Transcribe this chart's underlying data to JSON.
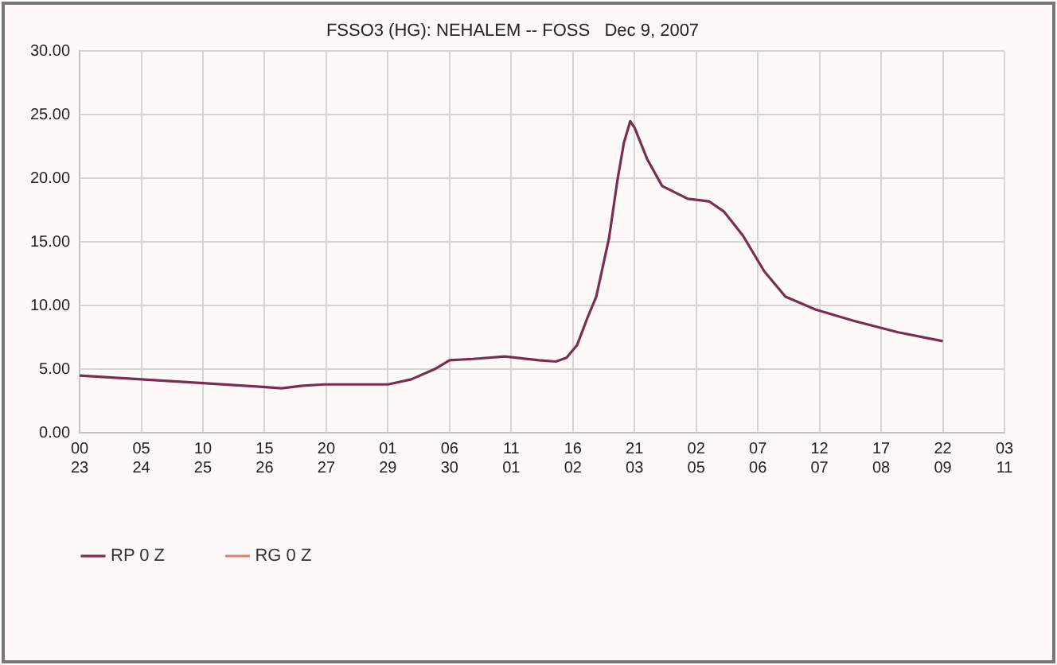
{
  "chart_data": {
    "type": "line",
    "title": "FSSO3 (HG): NEHALEM -- FOSS   Dec 9, 2007",
    "x": [
      "2007-11-23T00:00",
      "2007-11-24T05:00",
      "2007-11-25T10:00",
      "2007-11-26T14:00",
      "2007-11-26T23:00",
      "2007-11-27T09:00",
      "2007-11-27T19:00",
      "2007-11-29T01:00",
      "2007-11-29T12:00",
      "2007-11-29T23:00",
      "2007-11-30T06:00",
      "2007-11-30T17:00",
      "2007-12-01T08:00",
      "2007-12-02T00:00",
      "2007-12-02T08:00",
      "2007-12-02T13:00",
      "2007-12-02T18:00",
      "2007-12-02T23:00",
      "2007-12-03T03:00",
      "2007-12-03T09:00",
      "2007-12-03T13:00",
      "2007-12-03T16:00",
      "2007-12-03T19:00",
      "2007-12-03T21:00",
      "2007-12-04T03:00",
      "2007-12-04T10:00",
      "2007-12-04T22:00",
      "2007-12-05T08:00",
      "2007-12-05T15:00",
      "2007-12-06T00:00",
      "2007-12-06T10:00",
      "2007-12-06T20:00",
      "2007-12-07T10:00",
      "2007-12-08T04:00",
      "2007-12-09T01:00",
      "2007-12-09T22:00"
    ],
    "series": [
      {
        "name": "RP 0 Z",
        "color": "#7b2d4f",
        "values": [
          4.5,
          4.2,
          3.9,
          3.6,
          3.5,
          3.7,
          3.8,
          3.8,
          4.2,
          5.0,
          5.7,
          5.8,
          6.0,
          5.7,
          5.6,
          5.9,
          6.9,
          9.1,
          10.7,
          15.3,
          19.9,
          22.8,
          24.5,
          24.0,
          21.5,
          19.4,
          18.4,
          18.2,
          17.4,
          15.5,
          12.7,
          10.7,
          9.7,
          8.8,
          7.9,
          7.2
        ]
      },
      {
        "name": "RG 0 Z",
        "color": "#e0806c",
        "values": [
          null,
          null,
          null,
          null,
          null,
          null,
          null,
          null,
          null,
          null,
          null,
          null,
          null,
          null,
          null,
          null,
          null,
          null,
          null,
          null,
          null,
          null,
          null,
          null,
          null,
          null,
          null,
          null,
          null,
          null,
          null,
          null,
          null,
          null,
          null,
          null
        ]
      }
    ],
    "xlim": [
      "2007-11-23T00:00",
      "2007-12-11T03:00"
    ],
    "xticks": [
      {
        "value": "2007-11-23T00:00",
        "label": "00\n23"
      },
      {
        "value": "2007-11-24T05:00",
        "label": "05\n24"
      },
      {
        "value": "2007-11-25T10:00",
        "label": "10\n25"
      },
      {
        "value": "2007-11-26T15:00",
        "label": "15\n26"
      },
      {
        "value": "2007-11-27T20:00",
        "label": "20\n27"
      },
      {
        "value": "2007-11-29T01:00",
        "label": "01\n29"
      },
      {
        "value": "2007-11-30T06:00",
        "label": "06\n30"
      },
      {
        "value": "2007-12-01T11:00",
        "label": "11\n01"
      },
      {
        "value": "2007-12-02T16:00",
        "label": "16\n02"
      },
      {
        "value": "2007-12-03T21:00",
        "label": "21\n03"
      },
      {
        "value": "2007-12-05T02:00",
        "label": "02\n05"
      },
      {
        "value": "2007-12-06T07:00",
        "label": "07\n06"
      },
      {
        "value": "2007-12-07T12:00",
        "label": "12\n07"
      },
      {
        "value": "2007-12-08T17:00",
        "label": "17\n08"
      },
      {
        "value": "2007-12-09T22:00",
        "label": "22\n09"
      },
      {
        "value": "2007-12-11T03:00",
        "label": "03\n11"
      }
    ],
    "ylim": [
      0,
      30
    ],
    "yticks": [
      {
        "value": 0,
        "label": "0.00"
      },
      {
        "value": 5,
        "label": "5.00"
      },
      {
        "value": 10,
        "label": "10.00"
      },
      {
        "value": 15,
        "label": "15.00"
      },
      {
        "value": 20,
        "label": "20.00"
      },
      {
        "value": 25,
        "label": "25.00"
      },
      {
        "value": 30,
        "label": "30.00"
      }
    ],
    "grid": true,
    "legend": "bottom left",
    "marker": "none",
    "line_style": "solid"
  }
}
